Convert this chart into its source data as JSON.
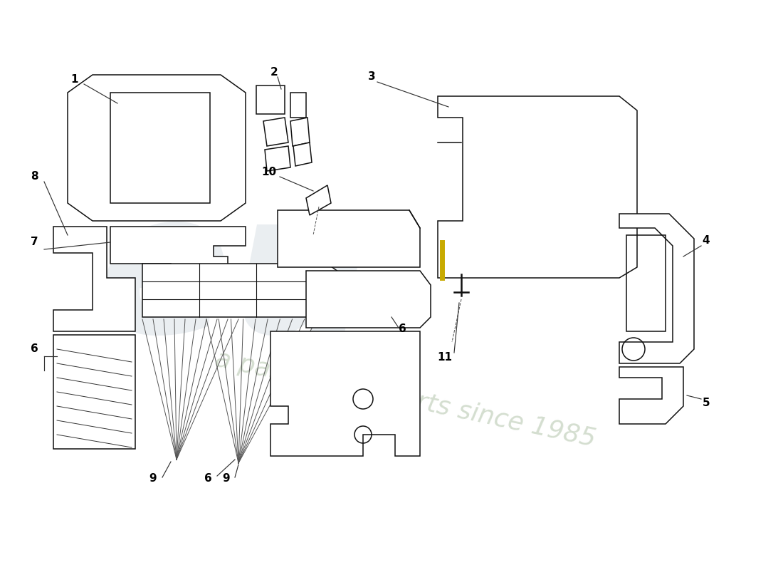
{
  "background_color": "#ffffff",
  "line_color": "#111111",
  "line_lw": 1.1,
  "leader_lw": 0.85,
  "watermark_eu_color": "#c5cfd8",
  "watermark_text_color": "#b8c8b0",
  "gold_color": "#c8aa00",
  "label_fontsize": 11,
  "label_fontweight": "bold",
  "fig_w": 11.0,
  "fig_h": 8.0,
  "dpi": 100,
  "xlim": [
    0,
    1100
  ],
  "ylim": [
    0,
    800
  ]
}
